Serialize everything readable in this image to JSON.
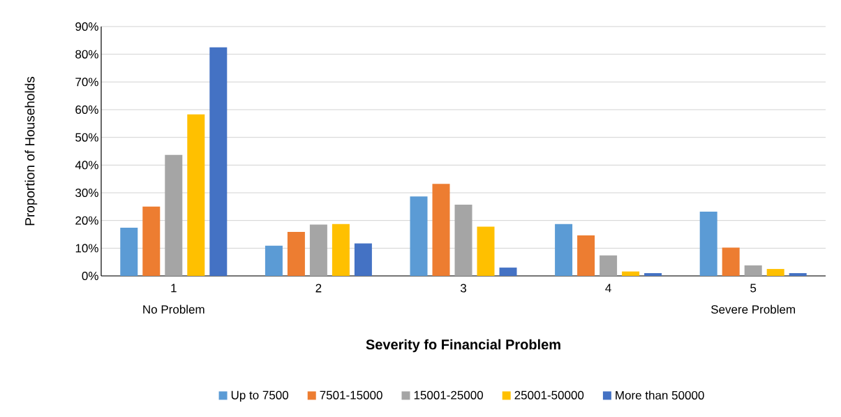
{
  "chart_data": {
    "type": "bar",
    "xlabel": "Severity fo Financial Problem",
    "ylabel": "Proportion of Households",
    "categories": [
      "1",
      "2",
      "3",
      "4",
      "5"
    ],
    "series": [
      {
        "name": "Up to 7500",
        "color": "#5b9bd5",
        "values": [
          17.4,
          10.9,
          28.7,
          18.7,
          23.2
        ]
      },
      {
        "name": "7501-15000",
        "color": "#ed7d31",
        "values": [
          25.0,
          15.9,
          33.2,
          14.6,
          10.2
        ]
      },
      {
        "name": "15001-25000",
        "color": "#a5a5a5",
        "values": [
          43.7,
          18.5,
          25.7,
          7.4,
          3.8
        ]
      },
      {
        "name": "25001-50000",
        "color": "#ffc000",
        "values": [
          58.3,
          18.7,
          17.8,
          1.6,
          2.5
        ]
      },
      {
        "name": "More than 50000",
        "color": "#4472c4",
        "values": [
          82.5,
          11.7,
          3.0,
          1.0,
          1.0
        ]
      }
    ],
    "ylim": [
      0,
      90
    ],
    "yticks": [
      {
        "value": 0,
        "label": "0%"
      },
      {
        "value": 10,
        "label": "10%"
      },
      {
        "value": 20,
        "label": "20%"
      },
      {
        "value": 30,
        "label": "30%"
      },
      {
        "value": 40,
        "label": "40%"
      },
      {
        "value": 50,
        "label": "50%"
      },
      {
        "value": 60,
        "label": "60%"
      },
      {
        "value": 70,
        "label": "70%"
      },
      {
        "value": 80,
        "label": "80%"
      },
      {
        "value": 90,
        "label": "90%"
      }
    ],
    "annotations": [
      "No Problem",
      "Severe Problem"
    ],
    "grid": "y",
    "legend": "bottom"
  }
}
